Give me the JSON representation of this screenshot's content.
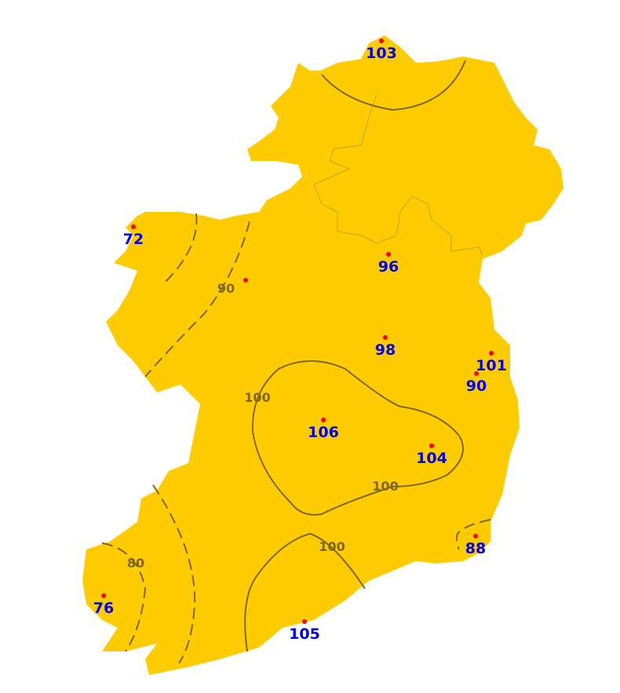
{
  "colors": {
    "land": "#ffcc00",
    "contour": "#806600",
    "station_dot": "#ff0000",
    "station_text": "#0000ee",
    "background": "#ffffff"
  },
  "stations": [
    {
      "value": "103"
    },
    {
      "value": "72"
    },
    {
      "value": ""
    },
    {
      "value": "96"
    },
    {
      "value": "98"
    },
    {
      "value": "101"
    },
    {
      "value": "90"
    },
    {
      "value": "106"
    },
    {
      "value": "104"
    },
    {
      "value": "88"
    },
    {
      "value": "76"
    },
    {
      "value": "105"
    }
  ],
  "contours": [
    {
      "level": "100",
      "style": "solid"
    },
    {
      "level": "80",
      "style": "dashed"
    },
    {
      "level": "90",
      "style": "dashed"
    },
    {
      "level": "100",
      "style": "solid"
    },
    {
      "level": "100",
      "style": "solid"
    },
    {
      "level": "80",
      "style": "dashed"
    },
    {
      "level": "90",
      "style": "dashed"
    },
    {
      "level": "90",
      "style": "dashed"
    }
  ],
  "contour_labels": [
    "90",
    "100",
    "100",
    "100",
    "80"
  ]
}
